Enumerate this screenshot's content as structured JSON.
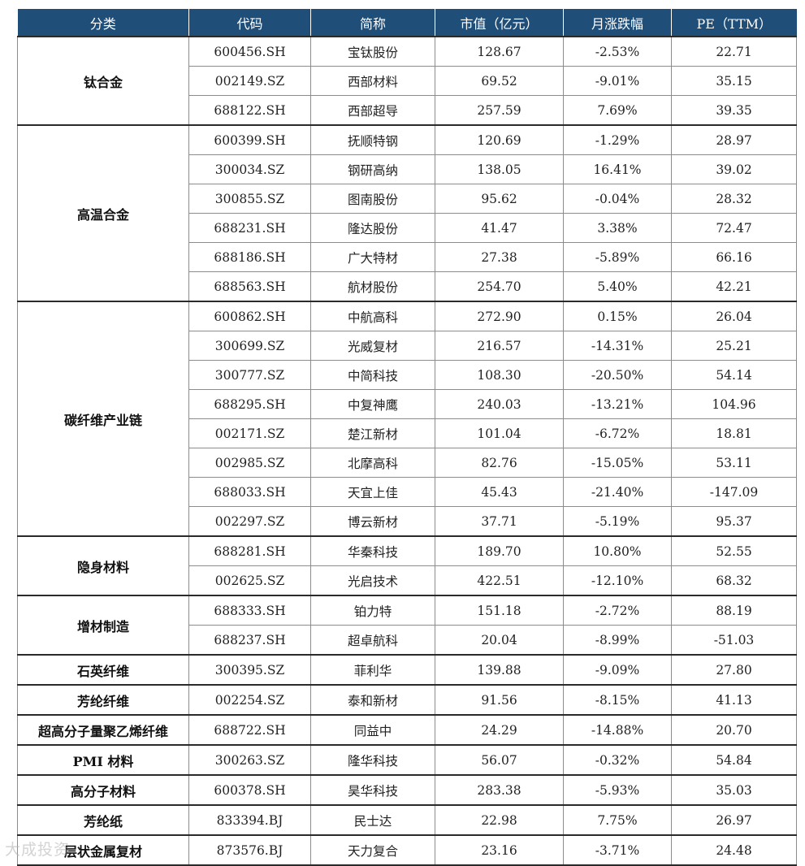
{
  "headers": [
    "分类",
    "代码",
    "简称",
    "市值（亿元）",
    "月涨跌幅",
    "PE（TTM）"
  ],
  "groups": [
    {
      "category": "钛合金",
      "rows": [
        [
          "600456.SH",
          "宝钛股份",
          "128.67",
          "-2.53%",
          "22.71"
        ],
        [
          "002149.SZ",
          "西部材料",
          "69.52",
          "-9.01%",
          "35.15"
        ],
        [
          "688122.SH",
          "西部超导",
          "257.59",
          "7.69%",
          "39.35"
        ]
      ]
    },
    {
      "category": "高温合金",
      "rows": [
        [
          "600399.SH",
          "抚顺特钢",
          "120.69",
          "-1.29%",
          "28.97"
        ],
        [
          "300034.SZ",
          "钢研高纳",
          "138.05",
          "16.41%",
          "39.02"
        ],
        [
          "300855.SZ",
          "图南股份",
          "95.62",
          "-0.04%",
          "28.32"
        ],
        [
          "688231.SH",
          "隆达股份",
          "41.47",
          "3.38%",
          "72.47"
        ],
        [
          "688186.SH",
          "广大特材",
          "27.38",
          "-5.89%",
          "66.16"
        ],
        [
          "688563.SH",
          "航材股份",
          "254.70",
          "5.40%",
          "42.21"
        ]
      ]
    },
    {
      "category": "碳纤维产业链",
      "rows": [
        [
          "600862.SH",
          "中航高科",
          "272.90",
          "0.15%",
          "26.04"
        ],
        [
          "300699.SZ",
          "光威复材",
          "216.57",
          "-14.31%",
          "25.21"
        ],
        [
          "300777.SZ",
          "中简科技",
          "108.30",
          "-20.50%",
          "54.14"
        ],
        [
          "688295.SH",
          "中复神鹰",
          "240.03",
          "-13.21%",
          "104.96"
        ],
        [
          "002171.SZ",
          "楚江新材",
          "101.04",
          "-6.72%",
          "18.81"
        ],
        [
          "002985.SZ",
          "北摩高科",
          "82.76",
          "-15.05%",
          "53.11"
        ],
        [
          "688033.SH",
          "天宜上佳",
          "45.43",
          "-21.40%",
          "-147.09"
        ],
        [
          "002297.SZ",
          "博云新材",
          "37.71",
          "-5.19%",
          "95.37"
        ]
      ]
    },
    {
      "category": "隐身材料",
      "rows": [
        [
          "688281.SH",
          "华秦科技",
          "189.70",
          "10.80%",
          "52.55"
        ],
        [
          "002625.SZ",
          "光启技术",
          "422.51",
          "-12.10%",
          "68.32"
        ]
      ]
    },
    {
      "category": "增材制造",
      "rows": [
        [
          "688333.SH",
          "铂力特",
          "151.18",
          "-2.72%",
          "88.19"
        ],
        [
          "688237.SH",
          "超卓航科",
          "20.04",
          "-8.99%",
          "-51.03"
        ]
      ]
    },
    {
      "category": "石英纤维",
      "rows": [
        [
          "300395.SZ",
          "菲利华",
          "139.88",
          "-9.09%",
          "27.80"
        ]
      ]
    },
    {
      "category": "芳纶纤维",
      "rows": [
        [
          "002254.SZ",
          "泰和新材",
          "91.56",
          "-8.15%",
          "41.13"
        ]
      ]
    },
    {
      "category": "超高分子量聚乙烯纤维",
      "rows": [
        [
          "688722.SH",
          "同益中",
          "24.29",
          "-14.88%",
          "20.70"
        ]
      ]
    },
    {
      "category": "PMI 材料",
      "rows": [
        [
          "300263.SZ",
          "隆华科技",
          "56.07",
          "-0.32%",
          "54.84"
        ]
      ]
    },
    {
      "category": "高分子材料",
      "rows": [
        [
          "600378.SH",
          "昊华科技",
          "283.38",
          "-5.93%",
          "35.03"
        ]
      ]
    },
    {
      "category": "芳纶纸",
      "rows": [
        [
          "833394.BJ",
          "民士达",
          "22.98",
          "7.75%",
          "26.97"
        ]
      ]
    },
    {
      "category": "层状金属复材",
      "rows": [
        [
          "873576.BJ",
          "天力复合",
          "23.16",
          "-3.71%",
          "24.48"
        ]
      ]
    }
  ],
  "watermark": "大成投资"
}
